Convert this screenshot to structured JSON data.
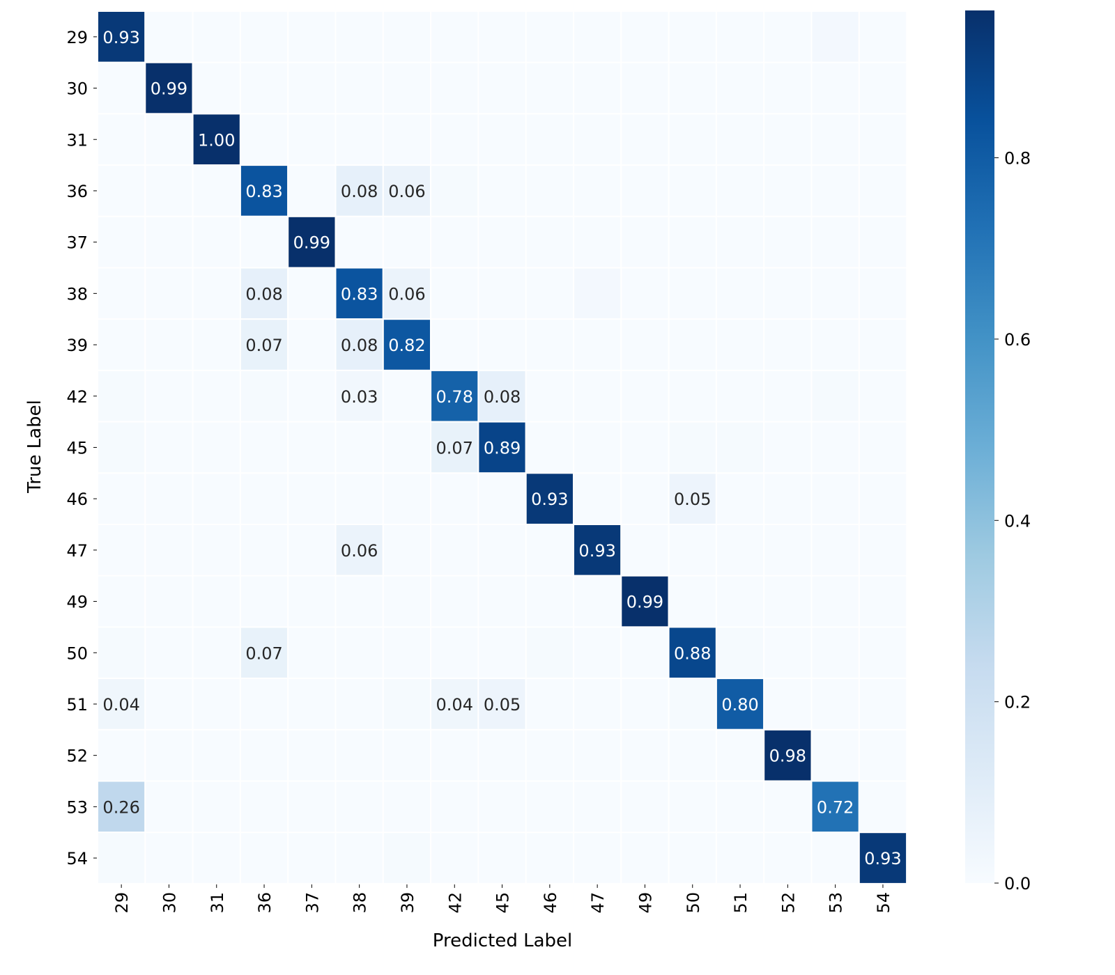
{
  "chart_data": {
    "type": "heatmap",
    "title": "",
    "xlabel": "Predicted Label",
    "ylabel": "True Label",
    "x_categories": [
      "29",
      "30",
      "31",
      "36",
      "37",
      "38",
      "39",
      "42",
      "45",
      "46",
      "47",
      "49",
      "50",
      "51",
      "52",
      "53",
      "54"
    ],
    "y_categories": [
      "29",
      "30",
      "31",
      "36",
      "37",
      "38",
      "39",
      "42",
      "45",
      "46",
      "47",
      "49",
      "50",
      "51",
      "52",
      "53",
      "54"
    ],
    "values": [
      [
        0.93,
        0,
        0,
        0,
        0,
        0,
        0,
        0,
        0,
        0,
        0,
        0,
        0,
        0,
        0,
        0.02,
        0
      ],
      [
        0,
        0.99,
        0,
        0,
        0,
        0,
        0,
        0,
        0,
        0,
        0,
        0,
        0,
        0,
        0,
        0,
        0
      ],
      [
        0,
        0,
        1.0,
        0,
        0,
        0,
        0,
        0,
        0,
        0,
        0,
        0,
        0,
        0,
        0,
        0,
        0
      ],
      [
        0,
        0,
        0,
        0.83,
        0,
        0.08,
        0.06,
        0.01,
        0,
        0,
        0,
        0,
        0,
        0,
        0,
        0,
        0
      ],
      [
        0,
        0,
        0,
        0,
        0.99,
        0,
        0,
        0,
        0,
        0,
        0,
        0,
        0,
        0,
        0,
        0,
        0
      ],
      [
        0,
        0,
        0,
        0.08,
        0,
        0.83,
        0.06,
        0,
        0,
        0,
        0.02,
        0,
        0,
        0,
        0,
        0,
        0
      ],
      [
        0,
        0,
        0,
        0.07,
        0,
        0.08,
        0.82,
        0,
        0,
        0,
        0,
        0,
        0,
        0,
        0,
        0,
        0
      ],
      [
        0.01,
        0,
        0,
        0.01,
        0,
        0.03,
        0,
        0.78,
        0.08,
        0,
        0,
        0,
        0,
        0,
        0,
        0.01,
        0
      ],
      [
        0.01,
        0,
        0,
        0,
        0,
        0,
        0,
        0.07,
        0.89,
        0,
        0,
        0,
        0.01,
        0.01,
        0,
        0,
        0
      ],
      [
        0,
        0,
        0,
        0,
        0,
        0,
        0,
        0,
        0,
        0.93,
        0,
        0,
        0.05,
        0,
        0,
        0,
        0
      ],
      [
        0,
        0,
        0,
        0,
        0,
        0.06,
        0,
        0,
        0,
        0,
        0.93,
        0,
        0,
        0,
        0,
        0,
        0
      ],
      [
        0,
        0,
        0,
        0,
        0,
        0,
        0,
        0,
        0,
        0,
        0,
        0.99,
        0,
        0,
        0,
        0,
        0
      ],
      [
        0.01,
        0,
        0,
        0.07,
        0,
        0,
        0,
        0,
        0,
        0.01,
        0,
        0,
        0.88,
        0.01,
        0,
        0,
        0
      ],
      [
        0.04,
        0,
        0,
        0,
        0,
        0,
        0.01,
        0.04,
        0.05,
        0,
        0,
        0,
        0.01,
        0.8,
        0,
        0,
        0
      ],
      [
        0,
        0,
        0,
        0,
        0,
        0,
        0,
        0,
        0,
        0,
        0,
        0,
        0,
        0,
        0.98,
        0,
        0
      ],
      [
        0.26,
        0,
        0,
        0,
        0,
        0,
        0,
        0,
        0,
        0,
        0,
        0,
        0,
        0,
        0,
        0.72,
        0
      ],
      [
        0.01,
        0,
        0,
        0,
        0,
        0,
        0.01,
        0,
        0,
        0,
        0,
        0,
        0,
        0,
        0,
        0,
        0.93
      ]
    ],
    "annotation_threshold": 0.025,
    "colormap": "Blues",
    "colors": {
      "low": "#f7fbff",
      "high": "#08306b"
    },
    "colorbar": {
      "range": [
        0,
        0.9625
      ],
      "ticks": [
        0.0,
        0.2,
        0.4,
        0.6,
        0.8
      ],
      "tick_labels": [
        "0.0",
        "0.2",
        "0.4",
        "0.6",
        "0.8"
      ]
    },
    "grid": "white-lines"
  }
}
